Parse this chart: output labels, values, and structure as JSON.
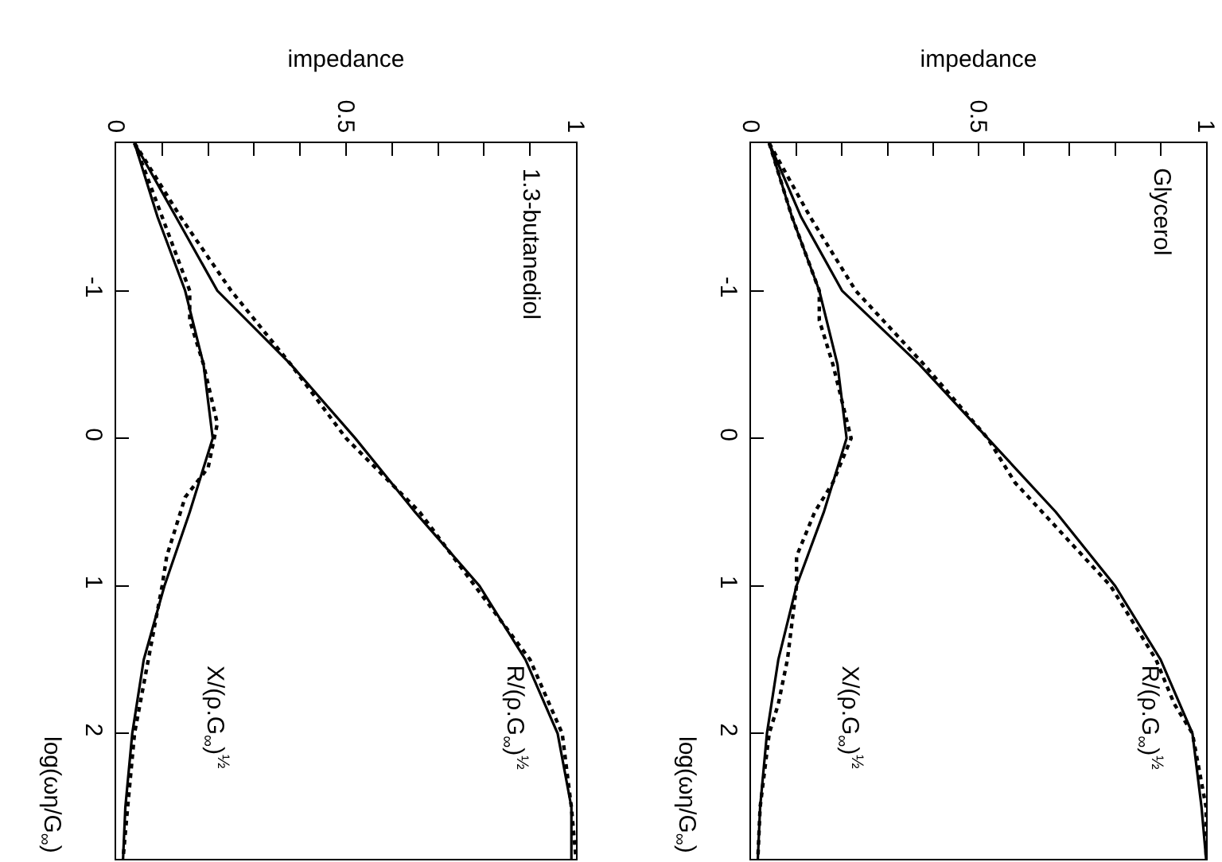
{
  "chart_data": [
    {
      "type": "line",
      "title": "1.3-butanediol",
      "xlabel": "impedance",
      "ylabel": "log(ωη/G$_{∞}$)",
      "ylim": [
        2.85,
        -2
      ],
      "yticks": [
        -1,
        0,
        1,
        2
      ],
      "xlim": [
        0,
        1
      ],
      "xticks": [
        0,
        {
          "value": 0.1,
          "label": null
        },
        {
          "value": 0.2,
          "label": null
        },
        {
          "value": 0.3,
          "label": null
        },
        {
          "value": 0.4,
          "label": null
        },
        0.5,
        {
          "value": 0.6,
          "label": null
        },
        {
          "value": 0.7,
          "label": null
        },
        {
          "value": 0.8,
          "label": null
        },
        {
          "value": 0.9,
          "label": null
        },
        1
      ],
      "legend": false,
      "grid": false,
      "marker": "none",
      "series": [
        {
          "name": "R/(ρ.G$_{∞}$)$^{½}$",
          "color": "#000000",
          "line_style": "solid",
          "values": [
            -2,
            -1.5,
            -1,
            -0.5,
            0,
            0.5,
            1,
            1.5,
            2,
            2.5,
            2.85
          ],
          "x": [
            0.04,
            0.13,
            0.22,
            0.38,
            0.52,
            0.65,
            0.79,
            0.89,
            0.96,
            0.99,
            0.99
          ]
        },
        {
          "color": "#000000",
          "line_style": "dotted",
          "values": [
            -2,
            -1.5,
            -1,
            -0.5,
            0,
            0.5,
            1,
            1.5,
            2,
            2.5,
            2.85
          ],
          "x": [
            0.04,
            0.14,
            0.25,
            0.38,
            0.5,
            0.66,
            0.78,
            0.9,
            0.97,
            0.99,
            1.0
          ]
        },
        {
          "name": "X/(ρ.G$_{∞}$)$^{½}$",
          "color": "#000000",
          "line_style": "solid",
          "values": [
            -2,
            -1.5,
            -1,
            -0.5,
            0,
            0.5,
            1,
            1.5,
            2,
            2.5,
            2.85
          ],
          "x": [
            0.04,
            0.09,
            0.15,
            0.19,
            0.21,
            0.16,
            0.105,
            0.06,
            0.035,
            0.02,
            0.015
          ]
        },
        {
          "color": "#000000",
          "line_style": "dotted",
          "values": [
            -2,
            -1.5,
            -1,
            -0.8,
            -0.5,
            -0.1,
            0.2,
            0.4,
            0.8,
            1,
            1.5,
            2,
            2.5,
            2.85
          ],
          "x": [
            0.04,
            0.1,
            0.16,
            0.16,
            0.19,
            0.22,
            0.2,
            0.15,
            0.11,
            0.1,
            0.07,
            0.04,
            0.025,
            0.015
          ]
        }
      ]
    },
    {
      "type": "line",
      "title": "Glycerol",
      "xlabel": "impedance",
      "ylabel": "log(ωη/G$_{∞}$)",
      "ylim": [
        2.85,
        -2
      ],
      "yticks": [
        -1,
        0,
        1,
        2
      ],
      "xlim": [
        0,
        1
      ],
      "xticks": [
        0,
        {
          "value": 0.1,
          "label": null
        },
        {
          "value": 0.2,
          "label": null
        },
        {
          "value": 0.3,
          "label": null
        },
        {
          "value": 0.4,
          "label": null
        },
        0.5,
        {
          "value": 0.6,
          "label": null
        },
        {
          "value": 0.7,
          "label": null
        },
        {
          "value": 0.8,
          "label": null
        },
        {
          "value": 0.9,
          "label": null
        },
        1
      ],
      "legend": false,
      "grid": false,
      "marker": "none",
      "series": [
        {
          "name": "R/(ρ.G$_{∞}$)$^{½}$",
          "color": "#000000",
          "line_style": "solid",
          "values": [
            -2,
            -1.5,
            -1,
            -0.5,
            0,
            0.5,
            1,
            1.5,
            2,
            2.5,
            2.85
          ],
          "x": [
            0.04,
            0.11,
            0.2,
            0.37,
            0.52,
            0.67,
            0.8,
            0.9,
            0.97,
            0.99,
            1.0
          ]
        },
        {
          "color": "#000000",
          "line_style": "dotted",
          "values": [
            -2,
            -1.5,
            -1,
            -0.5,
            0,
            0.3,
            0.5,
            1,
            1.5,
            1.8,
            2,
            2.5,
            2.85
          ],
          "x": [
            0.04,
            0.13,
            0.23,
            0.38,
            0.52,
            0.58,
            0.64,
            0.79,
            0.89,
            0.93,
            0.97,
            1.0,
            1.0
          ]
        },
        {
          "name": "X/(ρ.G$_{∞}$)$^{½}$",
          "color": "#000000",
          "line_style": "solid",
          "values": [
            -2,
            -1.5,
            -1,
            -0.5,
            0,
            0.5,
            1,
            1.5,
            2,
            2.5,
            2.85
          ],
          "x": [
            0.04,
            0.09,
            0.15,
            0.19,
            0.21,
            0.16,
            0.1,
            0.06,
            0.035,
            0.02,
            0.015
          ]
        },
        {
          "color": "#000000",
          "line_style": "dotted",
          "values": [
            -2,
            -1.5,
            -1,
            -0.8,
            -0.5,
            0,
            0.3,
            0.5,
            0.8,
            1,
            1.5,
            1.8,
            2,
            2.5,
            2.85
          ],
          "x": [
            0.04,
            0.09,
            0.15,
            0.15,
            0.18,
            0.22,
            0.18,
            0.14,
            0.1,
            0.1,
            0.08,
            0.06,
            0.04,
            0.02,
            0.015
          ]
        }
      ]
    }
  ]
}
